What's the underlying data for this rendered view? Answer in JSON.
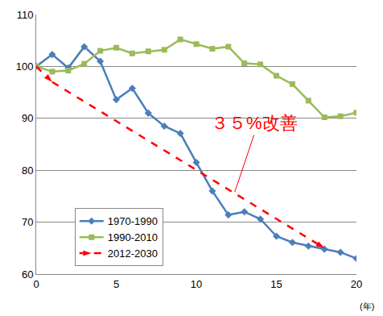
{
  "chart_data": {
    "type": "line",
    "x_label": "(年)",
    "annotation": "３５%改善",
    "xlim": [
      0,
      20
    ],
    "xticks": [
      0,
      5,
      10,
      15,
      20
    ],
    "ylim": [
      60,
      110
    ],
    "yticks": [
      60,
      70,
      80,
      90,
      100,
      110
    ],
    "grid": true,
    "legend": "lower left",
    "series": [
      {
        "name": "1970-1990",
        "color": "#4a7ebb",
        "marker": "diamond",
        "line_style": "solid",
        "x": [
          0,
          1,
          2,
          3,
          4,
          5,
          6,
          7,
          8,
          9,
          10,
          11,
          12,
          13,
          14,
          15,
          16,
          17,
          18,
          19,
          20
        ],
        "values": [
          100,
          102.3,
          99.7,
          103.8,
          101,
          93.6,
          95.8,
          91,
          88.5,
          87.1,
          81.5,
          76,
          71.4,
          72,
          70.6,
          67.3,
          66.1,
          65.4,
          64.8,
          64.2,
          63
        ]
      },
      {
        "name": "1990-2010",
        "color": "#9bbb59",
        "marker": "square",
        "line_style": "solid",
        "x": [
          0,
          1,
          2,
          3,
          4,
          5,
          6,
          7,
          8,
          9,
          10,
          11,
          12,
          13,
          14,
          15,
          16,
          17,
          18,
          19,
          20
        ],
        "values": [
          100,
          99,
          99.2,
          100.5,
          103,
          103.6,
          102.5,
          102.9,
          103.2,
          105.2,
          104.3,
          103.4,
          103.8,
          100.6,
          100.4,
          98.2,
          96.6,
          93.4,
          90.2,
          90.4,
          91.1
        ]
      },
      {
        "name": "2012-2030",
        "color": "#ff0000",
        "marker": "arrow",
        "line_style": "dash",
        "x": [
          0,
          1,
          18
        ],
        "values": [
          100,
          97,
          65
        ]
      }
    ]
  }
}
